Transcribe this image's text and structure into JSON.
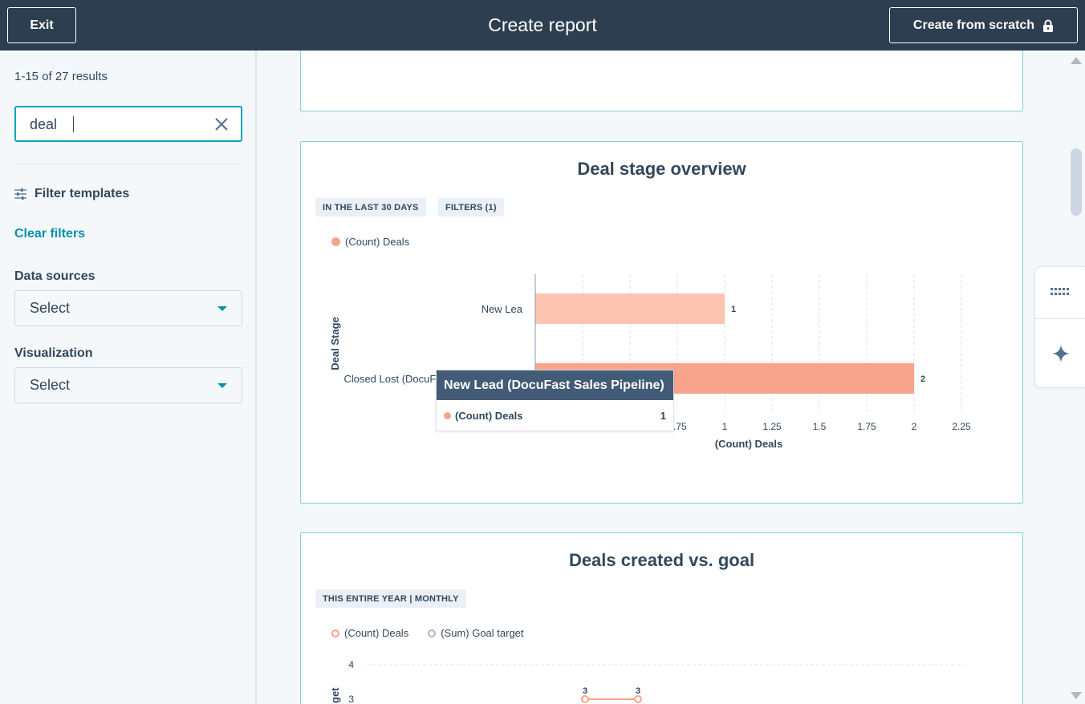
{
  "header": {
    "exit_label": "Exit",
    "title": "Create report",
    "create_from_scratch_label": "Create from scratch"
  },
  "sidebar": {
    "results_text": "1-15 of 27 results",
    "search_value": "deal",
    "filter_templates_label": "Filter templates",
    "clear_filters_label": "Clear filters",
    "data_sources_label": "Data sources",
    "data_sources_value": "Select",
    "visualization_label": "Visualization",
    "visualization_value": "Select"
  },
  "cards": [
    {
      "title": "Deal stage overview",
      "tags": [
        "IN THE LAST 30 DAYS",
        "FILTERS (1)"
      ],
      "legend": "(Count) Deals"
    },
    {
      "title": "Deals created vs. goal",
      "tags": [
        "THIS ENTIRE YEAR | MONTHLY"
      ],
      "legend": [
        "(Count) Deals",
        "(Sum) Goal target"
      ]
    }
  ],
  "tooltip": {
    "title": "New Lead (DocuFast Sales Pipeline)",
    "series": "(Count) Deals",
    "value": "1"
  },
  "colors": {
    "header_bg": "#2d3e50",
    "accent": "#00a4bd",
    "link": "#0091ae",
    "bar_primary": "#f8a48c",
    "bar_highlight": "#fdc4b2",
    "goal_gray": "#b0b8c2"
  },
  "chart_data": [
    {
      "type": "bar",
      "orientation": "horizontal",
      "title": "Deal stage overview",
      "categories": [
        "New Lead (DocuFast Sales Pipeline)",
        "Closed Lost (DocuFast Sales Pipeline)"
      ],
      "visible_category_labels": [
        "New Lea",
        "Closed Lost (DocuFast Sales Pipeline)"
      ],
      "series": [
        {
          "name": "(Count) Deals",
          "values": [
            1,
            2
          ]
        }
      ],
      "xlabel": "(Count) Deals",
      "ylabel": "Deal Stage",
      "xlim": [
        0,
        2.25
      ],
      "xticks": [
        "0",
        "0.25",
        "0.5",
        "0.75",
        "1",
        "1.25",
        "1.5",
        "1.75",
        "2",
        "2.25"
      ],
      "grid": true,
      "legend": "top-left"
    },
    {
      "type": "line",
      "title": "Deals created vs. goal",
      "series": [
        {
          "name": "(Count) Deals",
          "data_labels": [
            "3",
            "3"
          ]
        },
        {
          "name": "(Sum) Goal target"
        }
      ],
      "ylabel_partial": "get",
      "yticks_visible": [
        "4",
        "3"
      ],
      "grid": true,
      "legend": "top-left"
    }
  ]
}
